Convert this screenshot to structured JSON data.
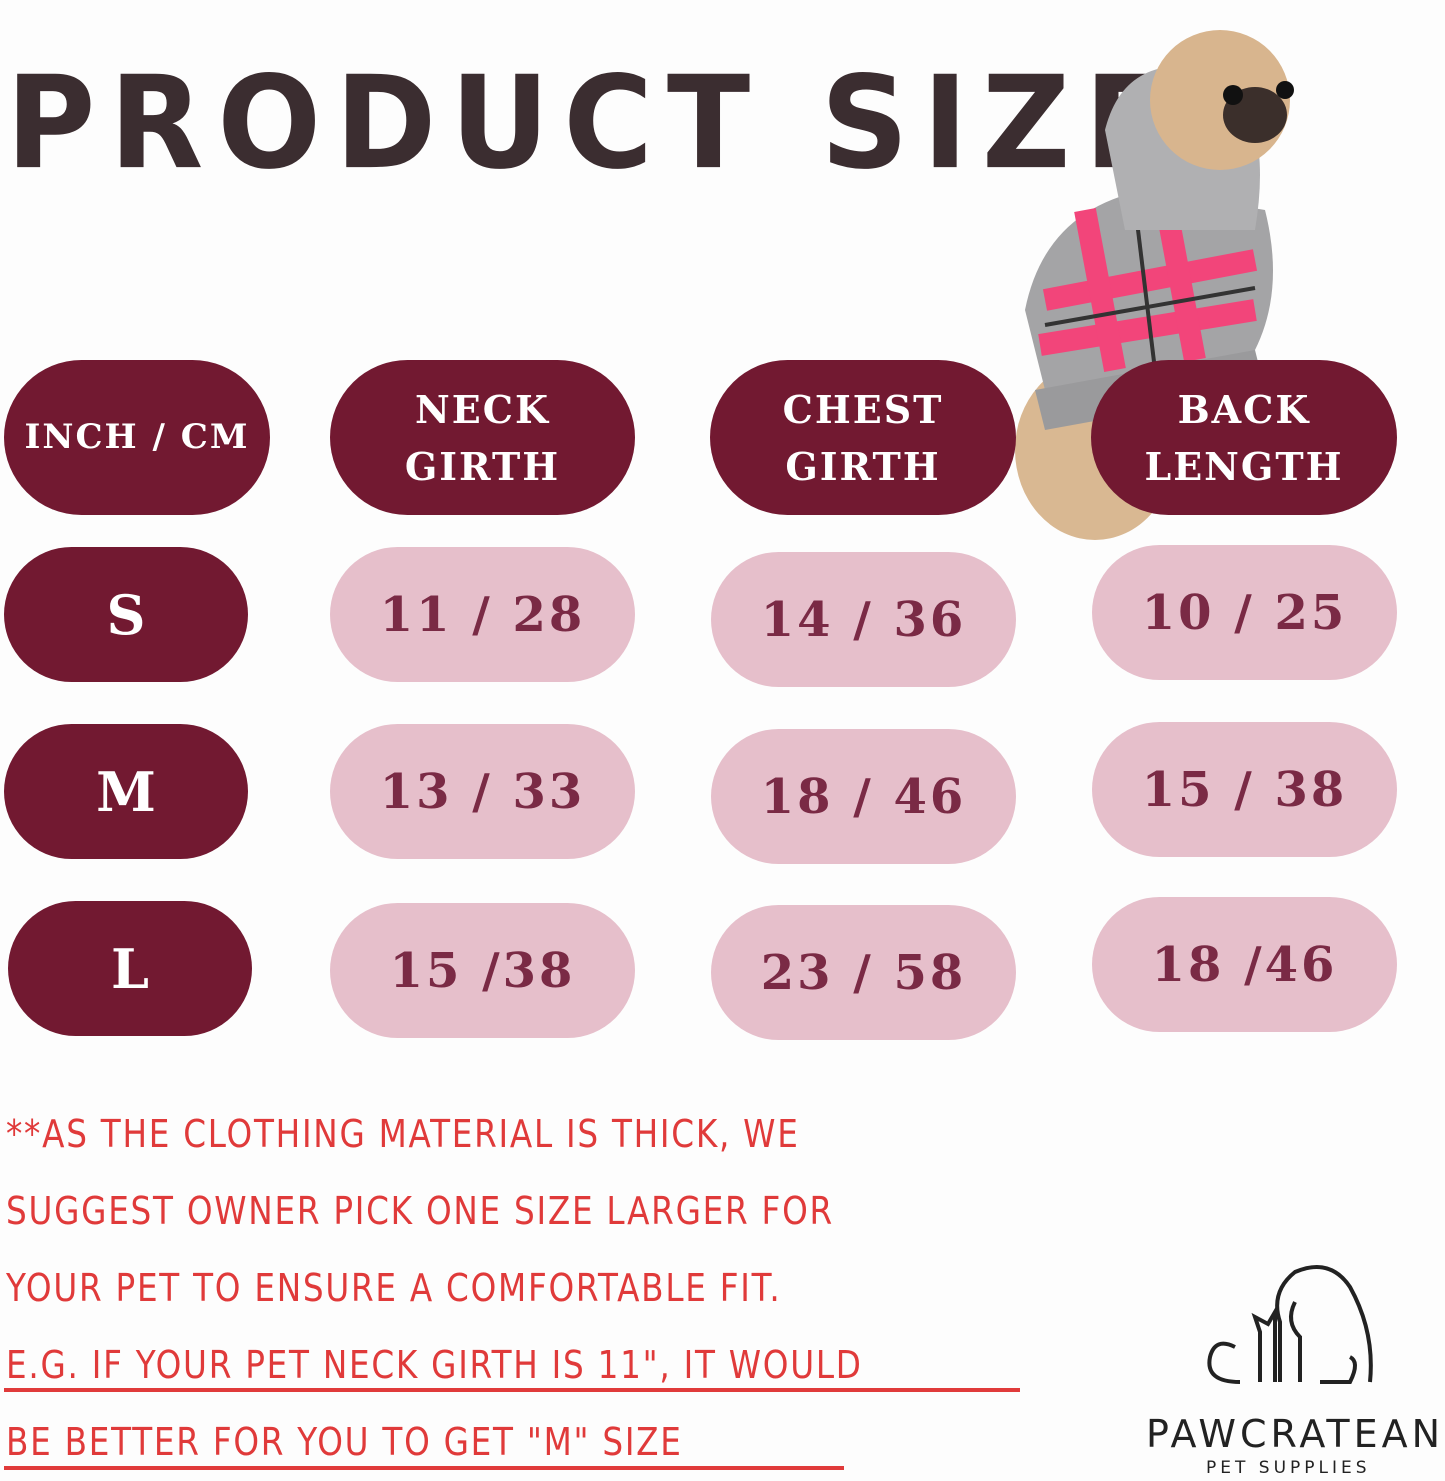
{
  "title": "PRODUCT SIZE",
  "colors": {
    "header_pill": "#721931",
    "value_pill": "#e6bfcb",
    "value_text": "#7a2a45",
    "note_text": "#e03a3a",
    "title": "#3b2d30"
  },
  "table": {
    "headers": [
      "INCH / CM",
      "NECK GIRTH",
      "CHEST GIRTH",
      "BACK LENGTH"
    ],
    "header_lines": [
      [
        "INCH / CM"
      ],
      [
        "NECK",
        "GIRTH"
      ],
      [
        "CHEST",
        "GIRTH"
      ],
      [
        "BACK",
        "LENGTH"
      ]
    ],
    "rows": [
      {
        "size": "S",
        "neck": "11 / 28",
        "chest": "14 / 36",
        "back": "10 / 25"
      },
      {
        "size": "M",
        "neck": "13 / 33",
        "chest": "18 / 46",
        "back": "15 / 38"
      },
      {
        "size": "L",
        "neck": "15 /38",
        "chest": "23 / 58",
        "back": "18 /46"
      }
    ]
  },
  "note": {
    "lines": [
      "**AS THE CLOTHING MATERIAL IS THICK, WE",
      "SUGGEST OWNER PICK ONE SIZE LARGER FOR",
      "YOUR PET TO ENSURE A COMFORTABLE FIT.",
      "E.G. IF YOUR PET NECK GIRTH IS 11\", IT WOULD",
      "BE BETTER FOR YOU TO GET  \"M\" SIZE"
    ]
  },
  "brand": {
    "name": "PAWCRATEAN",
    "tagline": "PET SUPPLIES"
  },
  "image": {
    "subject": "pug-in-plaid-hoodie"
  }
}
